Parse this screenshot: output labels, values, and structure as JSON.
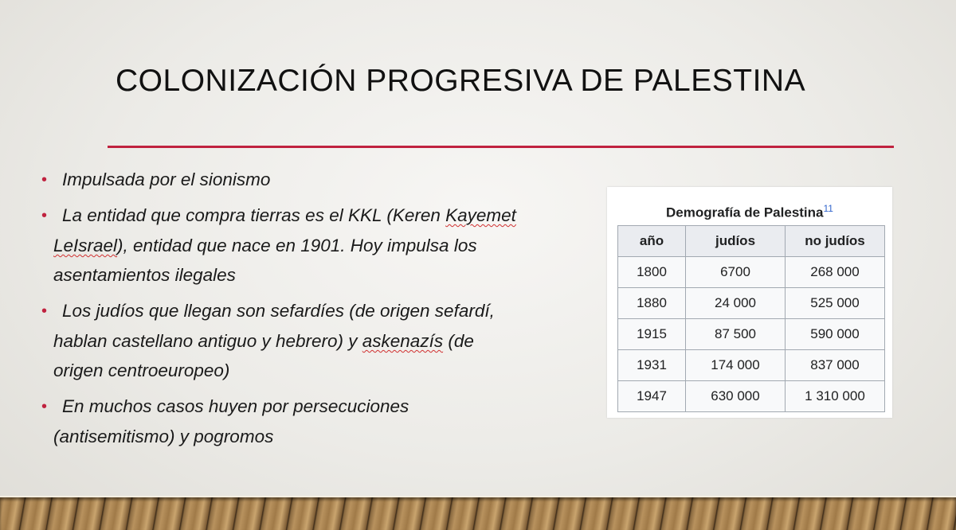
{
  "slide": {
    "title": "COLONIZACIÓN PROGRESIVA DE PALESTINA",
    "accent_color": "#c0223f",
    "bullets": [
      {
        "lines": [
          "Impulsada por el sionismo"
        ]
      },
      {
        "lines": [
          "La entidad que compra tierras es el KKL (Keren Kayemet",
          "LeIsrael), entidad que nace en 1901. Hoy impulsa los",
          "asentamientos ilegales"
        ]
      },
      {
        "lines": [
          "Los judíos que llegan son sefardíes (de origen sefardí,",
          "hablan castellano antiguo y hebrero) y askenazís (de",
          "origen centroeuropeo)"
        ]
      },
      {
        "lines": [
          "En muchos casos huyen por persecuciones",
          "(antisemitismo) y pogromos"
        ]
      }
    ]
  },
  "table": {
    "caption": "Demografía de Palestina",
    "caption_ref": "11",
    "headers": [
      "año",
      "judíos",
      "no judíos"
    ],
    "rows": [
      [
        "1800",
        "6700",
        "268 000"
      ],
      [
        "1880",
        "24 000",
        "525 000"
      ],
      [
        "1915",
        "87 500",
        "590 000"
      ],
      [
        "1931",
        "174 000",
        "837 000"
      ],
      [
        "1947",
        "630 000",
        "1 310 000"
      ]
    ]
  }
}
